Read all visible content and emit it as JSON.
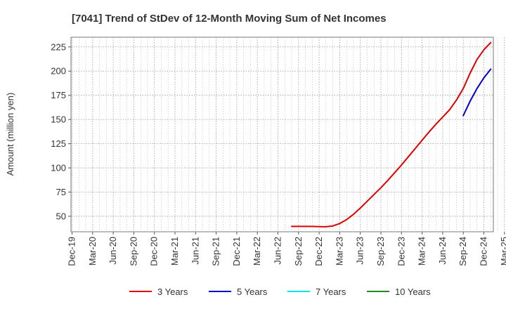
{
  "chart_data": {
    "type": "line",
    "title": "[7041]  Trend of StDev of 12-Month Moving Sum of Net Incomes",
    "ylabel": "Amount (million yen)",
    "xlabel": "",
    "x_ticks": [
      "Dec-19",
      "Mar-20",
      "Jun-20",
      "Sep-20",
      "Dec-20",
      "Mar-21",
      "Jun-21",
      "Sep-21",
      "Dec-21",
      "Mar-22",
      "Jun-22",
      "Sep-22",
      "Dec-22",
      "Mar-23",
      "Jun-23",
      "Sep-23",
      "Dec-23",
      "Mar-24",
      "Jun-24",
      "Sep-24",
      "Dec-24",
      "Mar-25"
    ],
    "y_ticks": [
      50,
      75,
      100,
      125,
      150,
      175,
      200,
      225
    ],
    "ylim": [
      34,
      235
    ],
    "grid": true,
    "legend_position": "bottom",
    "series": [
      {
        "name": "3 Years",
        "color": "#e00000",
        "points": [
          [
            "Aug-22",
            39.5
          ],
          [
            "Sep-22",
            39.5
          ],
          [
            "Oct-22",
            39.5
          ],
          [
            "Nov-22",
            39.5
          ],
          [
            "Dec-22",
            39.3
          ],
          [
            "Jan-23",
            39.2
          ],
          [
            "Feb-23",
            40.0
          ],
          [
            "Mar-23",
            42.5
          ],
          [
            "Apr-23",
            46.5
          ],
          [
            "May-23",
            52.0
          ],
          [
            "Jun-23",
            58.5
          ],
          [
            "Jul-23",
            65.5
          ],
          [
            "Aug-23",
            72.5
          ],
          [
            "Sep-23",
            79.5
          ],
          [
            "Oct-23",
            87.0
          ],
          [
            "Nov-23",
            95.0
          ],
          [
            "Dec-23",
            103.0
          ],
          [
            "Jan-24",
            111.5
          ],
          [
            "Feb-24",
            120.0
          ],
          [
            "Mar-24",
            128.5
          ],
          [
            "Apr-24",
            137.0
          ],
          [
            "May-24",
            145.0
          ],
          [
            "Jun-24",
            152.5
          ],
          [
            "Jul-24",
            160.0
          ],
          [
            "Aug-24",
            170.0
          ],
          [
            "Sep-24",
            182.0
          ],
          [
            "Oct-24",
            198.0
          ],
          [
            "Nov-24",
            212.0
          ],
          [
            "Dec-24",
            222.0
          ],
          [
            "Jan-25",
            229.5
          ]
        ]
      },
      {
        "name": "5 Years",
        "color": "#0000cc",
        "points": [
          [
            "Sep-24",
            154.0
          ],
          [
            "Oct-24",
            169.0
          ],
          [
            "Nov-24",
            182.0
          ],
          [
            "Dec-24",
            193.0
          ],
          [
            "Jan-25",
            202.0
          ]
        ]
      },
      {
        "name": "7 Years",
        "color": "#00e5ee",
        "points": []
      },
      {
        "name": "10 Years",
        "color": "#228b22",
        "points": []
      }
    ]
  }
}
